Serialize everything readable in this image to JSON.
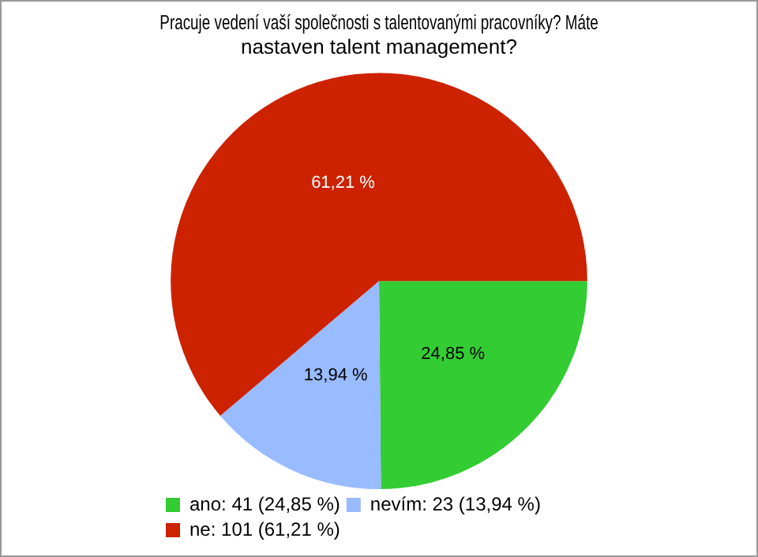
{
  "chart_data": {
    "type": "pie",
    "title": "Pracuje vedení vaší společnosti s talentovanými pracovníky? Máte nastaven talent management?",
    "categories": [
      "ano: 41 (24,85 %)",
      "nevím: 23 (13,94 %)",
      "ne: 101 (61,21 %)"
    ],
    "values": [
      24.85,
      13.94,
      61.21
    ],
    "colors": [
      "#33cc33",
      "#99bbff",
      "#cc2200"
    ],
    "value_labels": [
      "24,85 %",
      "13,94 %",
      "61,21 %"
    ],
    "legend": "bottom left"
  }
}
